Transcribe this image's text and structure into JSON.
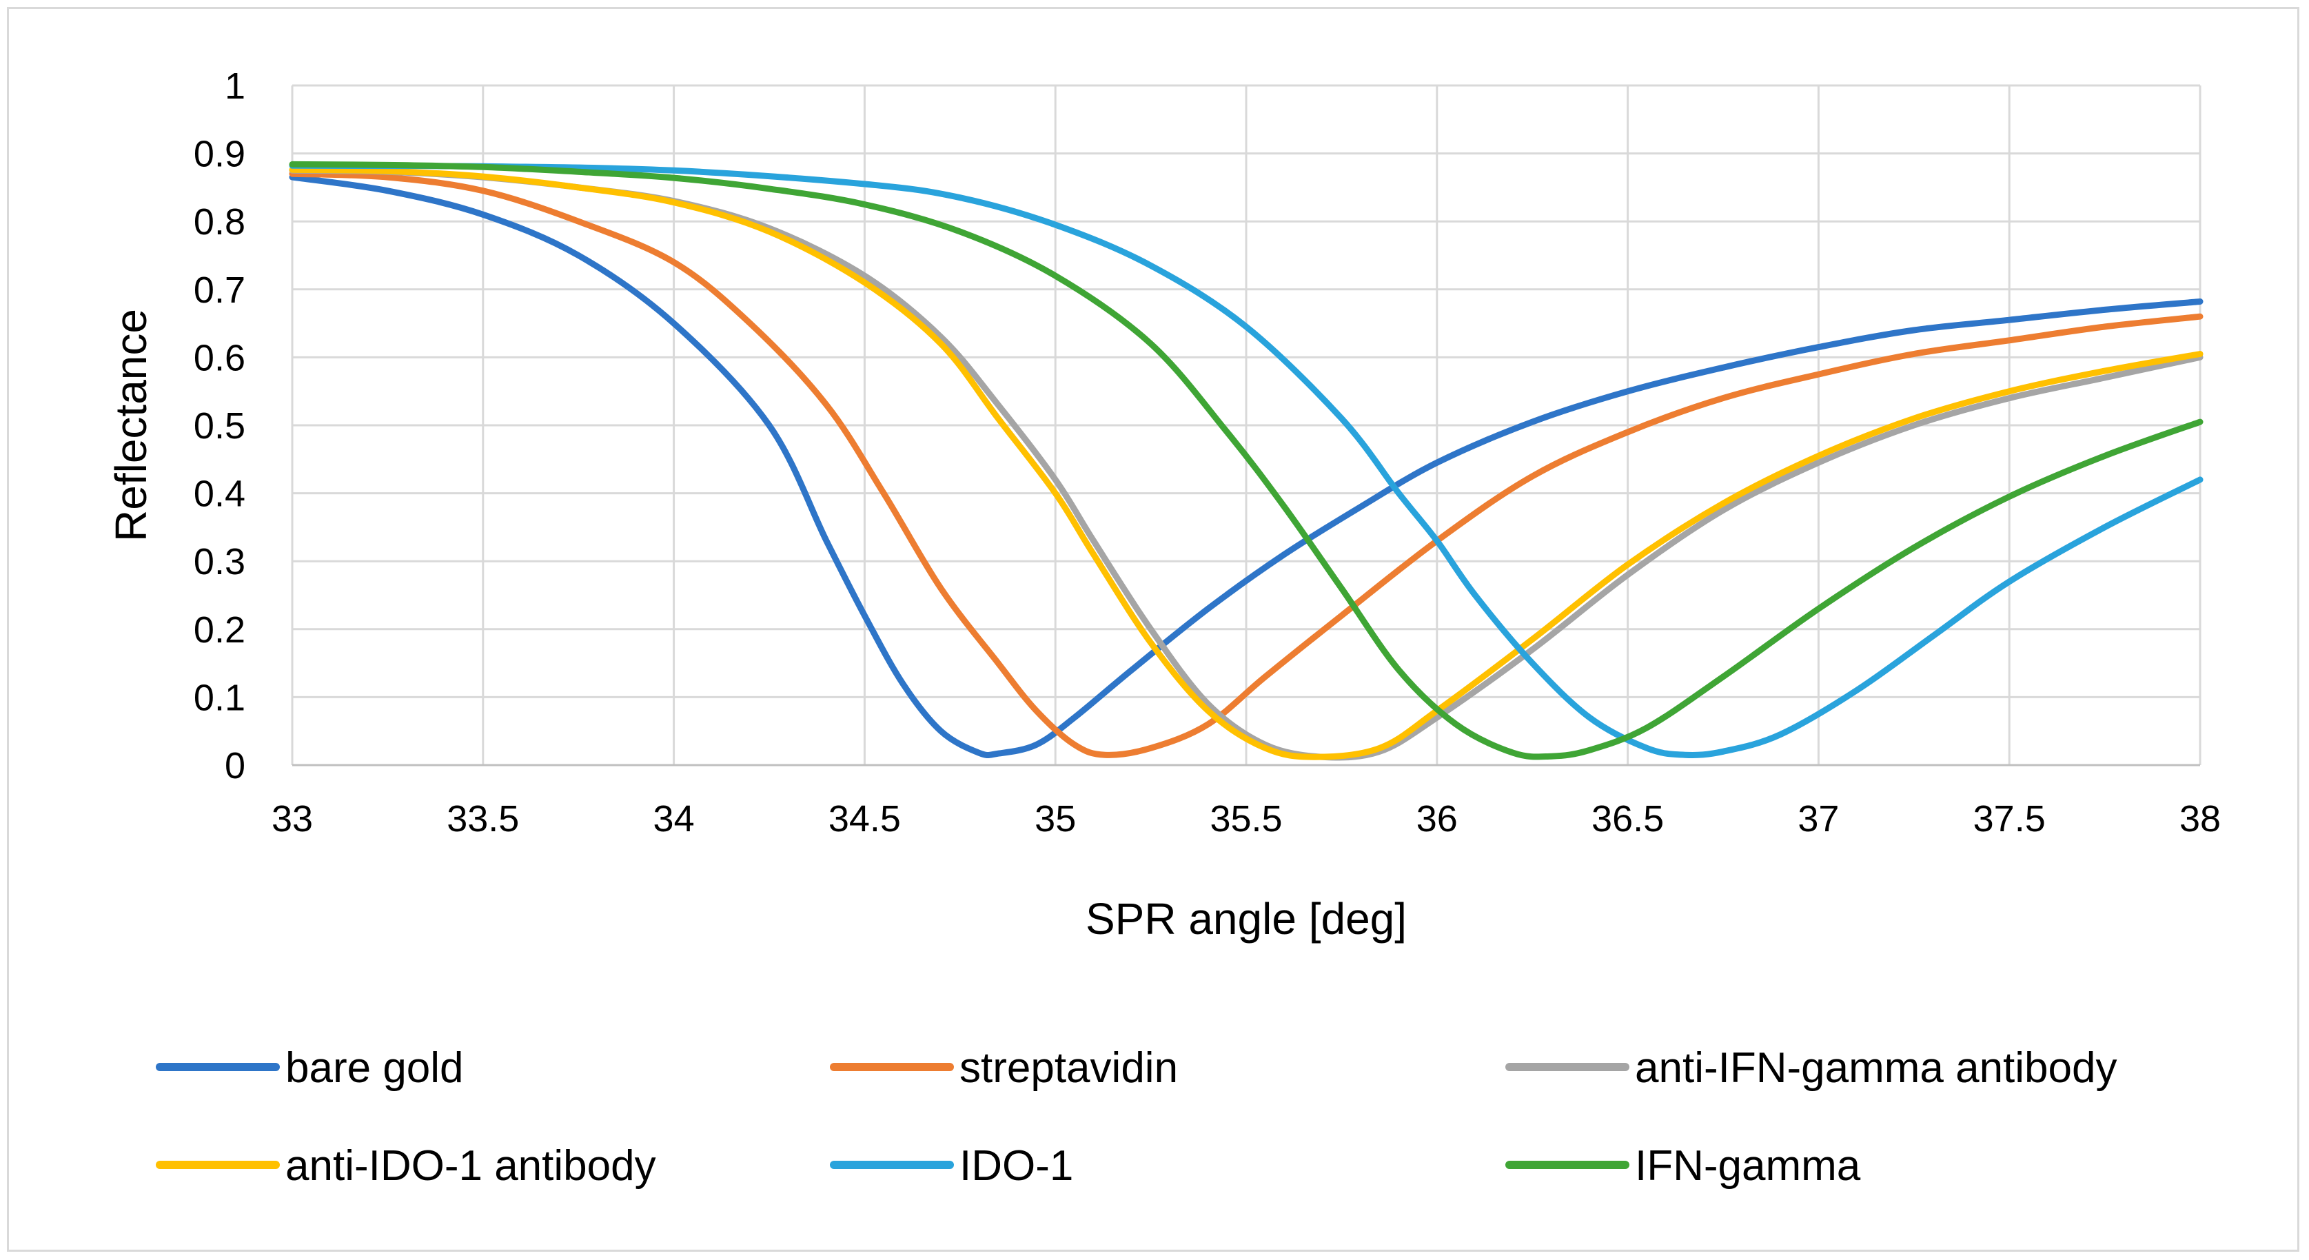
{
  "chart_data": {
    "type": "line",
    "title": "",
    "xlabel": "SPR angle [deg]",
    "ylabel": "Reflectance",
    "xlim": [
      33,
      38
    ],
    "ylim": [
      0,
      1
    ],
    "x_ticks": [
      33,
      33.5,
      34,
      34.5,
      35,
      35.5,
      36,
      36.5,
      37,
      37.5,
      38
    ],
    "x_tick_labels": [
      "33",
      "33.5",
      "34",
      "34.5",
      "35",
      "35.5",
      "36",
      "36.5",
      "37",
      "37.5",
      "38"
    ],
    "y_ticks": [
      0,
      0.1,
      0.2,
      0.3,
      0.4,
      0.5,
      0.6,
      0.7,
      0.8,
      0.9,
      1
    ],
    "y_tick_labels": [
      "0",
      "0.1",
      "0.2",
      "0.3",
      "0.4",
      "0.5",
      "0.6",
      "0.7",
      "0.8",
      "0.9",
      "1"
    ],
    "grid": true,
    "legend_position": "bottom",
    "series": [
      {
        "name": "bare gold",
        "color": "#2e75c8",
        "points": [
          [
            33,
            0.865
          ],
          [
            33.25,
            0.845
          ],
          [
            33.5,
            0.81
          ],
          [
            33.75,
            0.75
          ],
          [
            34,
            0.65
          ],
          [
            34.25,
            0.5
          ],
          [
            34.4,
            0.33
          ],
          [
            34.5,
            0.22
          ],
          [
            34.6,
            0.12
          ],
          [
            34.7,
            0.05
          ],
          [
            34.8,
            0.018
          ],
          [
            34.85,
            0.017
          ],
          [
            34.95,
            0.03
          ],
          [
            35.05,
            0.07
          ],
          [
            35.2,
            0.14
          ],
          [
            35.4,
            0.23
          ],
          [
            35.6,
            0.31
          ],
          [
            35.8,
            0.38
          ],
          [
            36,
            0.445
          ],
          [
            36.25,
            0.505
          ],
          [
            36.5,
            0.55
          ],
          [
            36.75,
            0.585
          ],
          [
            37,
            0.615
          ],
          [
            37.25,
            0.64
          ],
          [
            37.5,
            0.655
          ],
          [
            37.75,
            0.67
          ],
          [
            38,
            0.682
          ]
        ]
      },
      {
        "name": "streptavidin",
        "color": "#ed7d31",
        "points": [
          [
            33,
            0.87
          ],
          [
            33.25,
            0.865
          ],
          [
            33.5,
            0.845
          ],
          [
            33.75,
            0.8
          ],
          [
            34,
            0.74
          ],
          [
            34.2,
            0.65
          ],
          [
            34.4,
            0.53
          ],
          [
            34.55,
            0.4
          ],
          [
            34.7,
            0.26
          ],
          [
            34.85,
            0.15
          ],
          [
            34.95,
            0.08
          ],
          [
            35.05,
            0.03
          ],
          [
            35.13,
            0.015
          ],
          [
            35.25,
            0.025
          ],
          [
            35.4,
            0.06
          ],
          [
            35.55,
            0.13
          ],
          [
            35.75,
            0.22
          ],
          [
            36,
            0.33
          ],
          [
            36.25,
            0.425
          ],
          [
            36.5,
            0.49
          ],
          [
            36.75,
            0.54
          ],
          [
            37,
            0.575
          ],
          [
            37.25,
            0.605
          ],
          [
            37.5,
            0.625
          ],
          [
            37.75,
            0.645
          ],
          [
            38,
            0.66
          ]
        ]
      },
      {
        "name": "anti-IFN-gamma antibody",
        "color": "#a5a5a5",
        "points": [
          [
            33,
            0.875
          ],
          [
            33.25,
            0.873
          ],
          [
            33.5,
            0.865
          ],
          [
            33.75,
            0.85
          ],
          [
            34,
            0.83
          ],
          [
            34.25,
            0.79
          ],
          [
            34.5,
            0.72
          ],
          [
            34.7,
            0.63
          ],
          [
            34.85,
            0.53
          ],
          [
            35,
            0.42
          ],
          [
            35.1,
            0.33
          ],
          [
            35.25,
            0.2
          ],
          [
            35.4,
            0.09
          ],
          [
            35.55,
            0.03
          ],
          [
            35.7,
            0.012
          ],
          [
            35.85,
            0.02
          ],
          [
            36,
            0.07
          ],
          [
            36.25,
            0.17
          ],
          [
            36.5,
            0.28
          ],
          [
            36.75,
            0.375
          ],
          [
            37,
            0.445
          ],
          [
            37.25,
            0.5
          ],
          [
            37.5,
            0.54
          ],
          [
            37.75,
            0.57
          ],
          [
            38,
            0.6
          ]
        ]
      },
      {
        "name": "anti-IDO-1 antibody",
        "color": "#ffc000",
        "points": [
          [
            33,
            0.876
          ],
          [
            33.25,
            0.874
          ],
          [
            33.5,
            0.866
          ],
          [
            33.75,
            0.85
          ],
          [
            34,
            0.828
          ],
          [
            34.25,
            0.785
          ],
          [
            34.5,
            0.71
          ],
          [
            34.7,
            0.62
          ],
          [
            34.85,
            0.51
          ],
          [
            35,
            0.4
          ],
          [
            35.1,
            0.31
          ],
          [
            35.25,
            0.18
          ],
          [
            35.4,
            0.08
          ],
          [
            35.55,
            0.025
          ],
          [
            35.68,
            0.012
          ],
          [
            35.85,
            0.025
          ],
          [
            36,
            0.08
          ],
          [
            36.25,
            0.185
          ],
          [
            36.5,
            0.295
          ],
          [
            36.75,
            0.385
          ],
          [
            37,
            0.455
          ],
          [
            37.25,
            0.51
          ],
          [
            37.5,
            0.55
          ],
          [
            37.75,
            0.58
          ],
          [
            38,
            0.605
          ]
        ]
      },
      {
        "name": "IDO-1",
        "color": "#29a3dc",
        "points": [
          [
            33,
            0.882
          ],
          [
            33.5,
            0.881
          ],
          [
            34,
            0.875
          ],
          [
            34.5,
            0.855
          ],
          [
            34.75,
            0.835
          ],
          [
            35,
            0.795
          ],
          [
            35.25,
            0.735
          ],
          [
            35.5,
            0.645
          ],
          [
            35.75,
            0.51
          ],
          [
            35.9,
            0.4
          ],
          [
            36,
            0.33
          ],
          [
            36.1,
            0.25
          ],
          [
            36.25,
            0.15
          ],
          [
            36.4,
            0.07
          ],
          [
            36.55,
            0.025
          ],
          [
            36.65,
            0.015
          ],
          [
            36.75,
            0.02
          ],
          [
            36.9,
            0.045
          ],
          [
            37.1,
            0.11
          ],
          [
            37.3,
            0.19
          ],
          [
            37.5,
            0.27
          ],
          [
            37.75,
            0.35
          ],
          [
            38,
            0.42
          ]
        ]
      },
      {
        "name": "IFN-gamma",
        "color": "#3fa535",
        "points": [
          [
            33,
            0.884
          ],
          [
            33.25,
            0.883
          ],
          [
            33.5,
            0.88
          ],
          [
            33.75,
            0.873
          ],
          [
            34,
            0.864
          ],
          [
            34.25,
            0.848
          ],
          [
            34.5,
            0.825
          ],
          [
            34.75,
            0.785
          ],
          [
            35,
            0.72
          ],
          [
            35.25,
            0.62
          ],
          [
            35.45,
            0.49
          ],
          [
            35.6,
            0.38
          ],
          [
            35.75,
            0.26
          ],
          [
            35.9,
            0.14
          ],
          [
            36.05,
            0.06
          ],
          [
            36.2,
            0.018
          ],
          [
            36.3,
            0.013
          ],
          [
            36.4,
            0.022
          ],
          [
            36.55,
            0.055
          ],
          [
            36.75,
            0.13
          ],
          [
            37,
            0.23
          ],
          [
            37.25,
            0.32
          ],
          [
            37.5,
            0.395
          ],
          [
            37.75,
            0.455
          ],
          [
            38,
            0.505
          ]
        ]
      }
    ]
  }
}
